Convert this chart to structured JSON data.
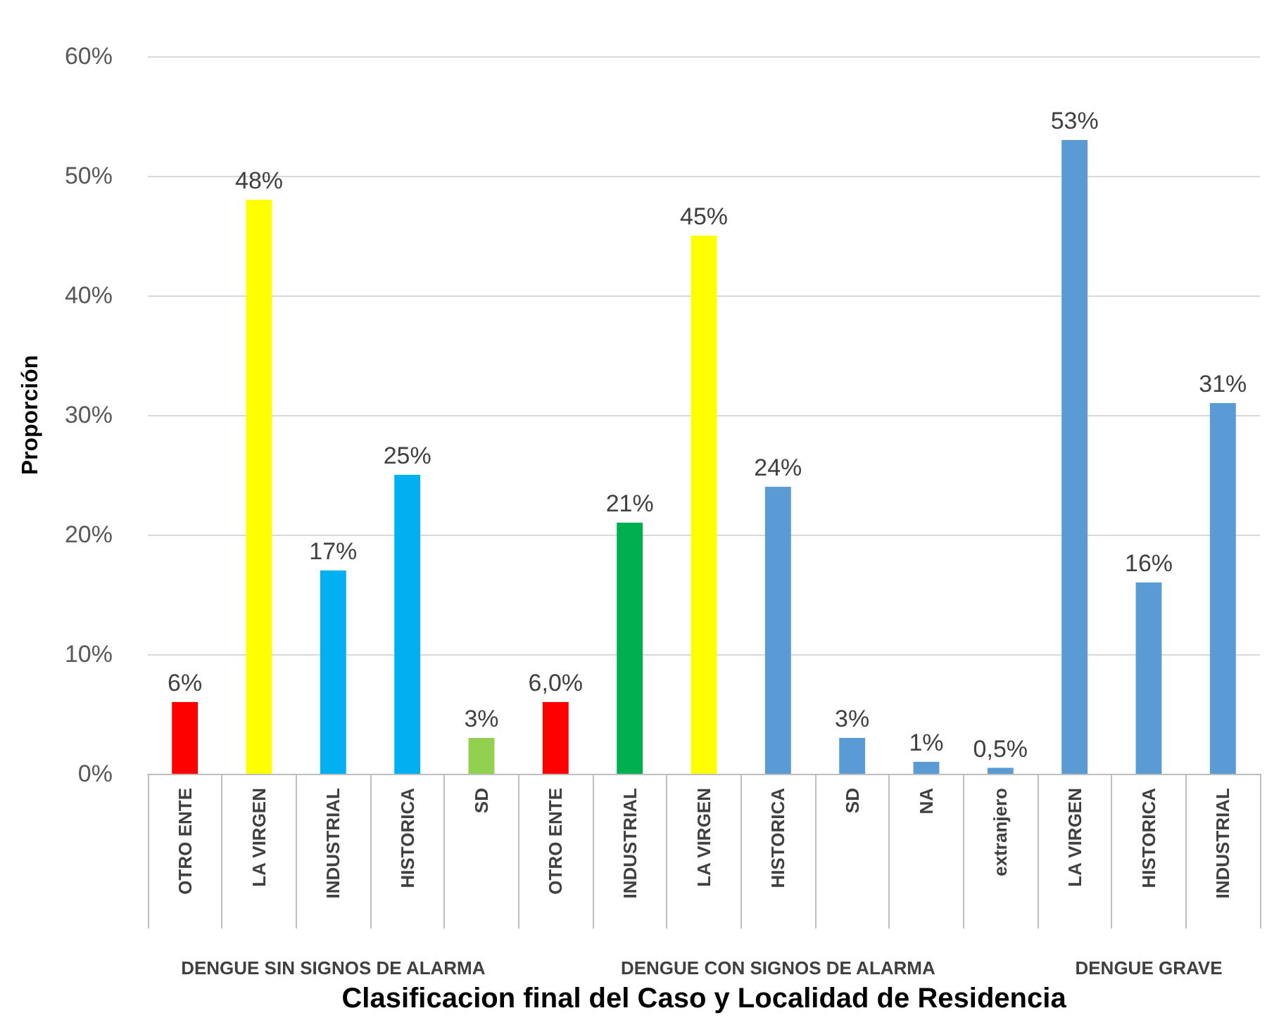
{
  "chart_data": {
    "type": "bar",
    "xlabel": "Clasificacion final del Caso y Localidad de Residencia",
    "ylabel": "Proporción",
    "categories": [
      "OTRO ENTE",
      "LA VIRGEN",
      "INDUSTRIAL",
      "HISTORICA",
      "SD",
      "OTRO ENTE",
      "INDUSTRIAL",
      "LA VIRGEN",
      "HISTORICA",
      "SD",
      "NA",
      "extranjero",
      "LA VIRGEN",
      "HISTORICA",
      "INDUSTRIAL"
    ],
    "values": [
      6,
      48,
      17,
      25,
      3,
      6,
      21,
      45,
      24,
      3,
      1,
      0.5,
      53,
      16,
      31
    ],
    "value_labels": [
      "6%",
      "48%",
      "17%",
      "25%",
      "3%",
      "6,0%",
      "21%",
      "45%",
      "24%",
      "3%",
      "1%",
      "0,5%",
      "53%",
      "16%",
      "31%"
    ],
    "colors": [
      "#ff0000",
      "#ffff00",
      "#00b0f0",
      "#00b0f0",
      "#92d050",
      "#ff0000",
      "#00b050",
      "#ffff00",
      "#5b9bd5",
      "#5b9bd5",
      "#5b9bd5",
      "#5b9bd5",
      "#5b9bd5",
      "#5b9bd5",
      "#5b9bd5"
    ],
    "ylim": [
      0,
      60
    ],
    "yticks": [
      {
        "value": 0,
        "label": "0%"
      },
      {
        "value": 10,
        "label": "10%"
      },
      {
        "value": 20,
        "label": "20%"
      },
      {
        "value": 30,
        "label": "30%"
      },
      {
        "value": 40,
        "label": "40%"
      },
      {
        "value": 50,
        "label": "50%"
      },
      {
        "value": 60,
        "label": "60%"
      }
    ],
    "annotations": [
      "DENGUE SIN SIGNOS DE ALARMA",
      "DENGUE CON SIGNOS DE ALARMA",
      "DENGUE GRAVE"
    ],
    "grid": "y"
  }
}
